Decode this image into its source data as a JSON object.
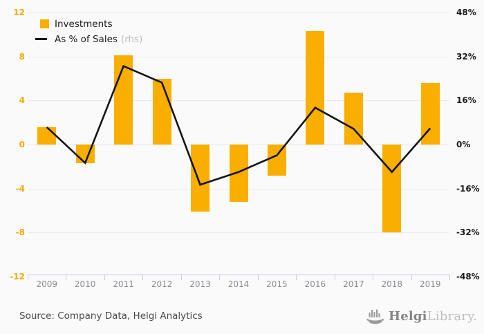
{
  "colors": {
    "bar": "#f9ae00",
    "line": "#141414",
    "grid": "#e9e9e9",
    "axis_line": "#c5cce1",
    "left_axis_label": "#f9a800",
    "right_axis_label": "#1a1a1a",
    "year_label": "#8a8a93"
  },
  "legend": {
    "items": [
      {
        "label": "Investments",
        "swatch": "bar-square"
      },
      {
        "label": "As % of Sales",
        "suffix": "(rhs)",
        "swatch": "line-dash"
      }
    ]
  },
  "chart_data": {
    "type": "bar",
    "subtype": "bar+line dual axis",
    "title": "",
    "categories": [
      "2009",
      "2010",
      "2011",
      "2012",
      "2013",
      "2014",
      "2015",
      "2016",
      "2017",
      "2018",
      "2019"
    ],
    "series": [
      {
        "name": "Investments",
        "type": "bar",
        "axis": "left",
        "values": [
          1.6,
          -1.7,
          8.1,
          6.0,
          -6.1,
          -5.2,
          -2.8,
          10.3,
          4.7,
          -8.0,
          5.6
        ]
      },
      {
        "name": "As % of Sales (rhs)",
        "type": "line",
        "axis": "right",
        "values": [
          6.3,
          -6.7,
          28.5,
          22.5,
          -14.6,
          -10.0,
          -3.9,
          13.4,
          5.7,
          -10.0,
          5.9
        ]
      }
    ],
    "left_axis": {
      "ticks": [
        12,
        8,
        4,
        0,
        -4,
        -8,
        -12
      ],
      "range": [
        -12,
        12
      ]
    },
    "right_axis": {
      "ticks": [
        "48%",
        "32%",
        "16%",
        "0%",
        "-16%",
        "-32%",
        "-48%"
      ],
      "range": [
        -48,
        48
      ]
    },
    "grid": true,
    "legend_position": "top-left"
  },
  "footer": {
    "source": "Source: Company Data, Helgi Analytics",
    "logo": {
      "name": "Helgi",
      "suffix": "Library."
    }
  }
}
